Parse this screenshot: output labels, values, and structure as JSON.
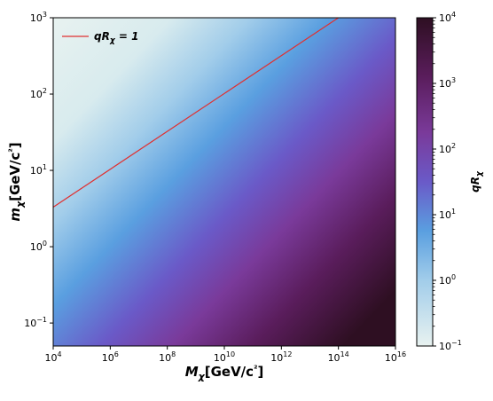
{
  "chart_data": {
    "type": "heatmap",
    "xlabel": "M_χ[GeV/c²]",
    "ylabel": "m_χ[GeV/c²]",
    "x_scale": "log",
    "y_scale": "log",
    "xlim": [
      10000.0,
      1e+16
    ],
    "ylim": [
      0.05,
      1000
    ],
    "x_ticks": [
      {
        "base": "10",
        "exp": "4"
      },
      {
        "base": "10",
        "exp": "6"
      },
      {
        "base": "10",
        "exp": "8"
      },
      {
        "base": "10",
        "exp": "10"
      },
      {
        "base": "10",
        "exp": "12"
      },
      {
        "base": "10",
        "exp": "14"
      },
      {
        "base": "10",
        "exp": "16"
      }
    ],
    "y_ticks": [
      {
        "base": "10",
        "exp": "−1"
      },
      {
        "base": "10",
        "exp": "0"
      },
      {
        "base": "10",
        "exp": "1"
      },
      {
        "base": "10",
        "exp": "2"
      },
      {
        "base": "10",
        "exp": "3"
      }
    ],
    "colorbar": {
      "label": "qR_χ",
      "scale": "log",
      "range": [
        0.1,
        10000
      ],
      "ticks": [
        {
          "base": "10",
          "exp": "4"
        },
        {
          "base": "10",
          "exp": "3"
        },
        {
          "base": "10",
          "exp": "2"
        },
        {
          "base": "10",
          "exp": "1"
        },
        {
          "base": "10",
          "exp": "0"
        },
        {
          "base": "10",
          "exp": "−1"
        }
      ],
      "colors": [
        "#e8f2f0",
        "#a2cdea",
        "#5a9fe0",
        "#6a5ac8",
        "#7a3a9a",
        "#5a1d5c",
        "#2e0f22"
      ]
    },
    "contour": {
      "legend": "qR_χ = 1",
      "level": 1,
      "color": "#e03030",
      "points": [
        {
          "x": 10000.0,
          "y": 3.3
        },
        {
          "x": 100000000000000.0,
          "y": 1000
        }
      ]
    },
    "grid": false,
    "legend_position": "top-left"
  }
}
